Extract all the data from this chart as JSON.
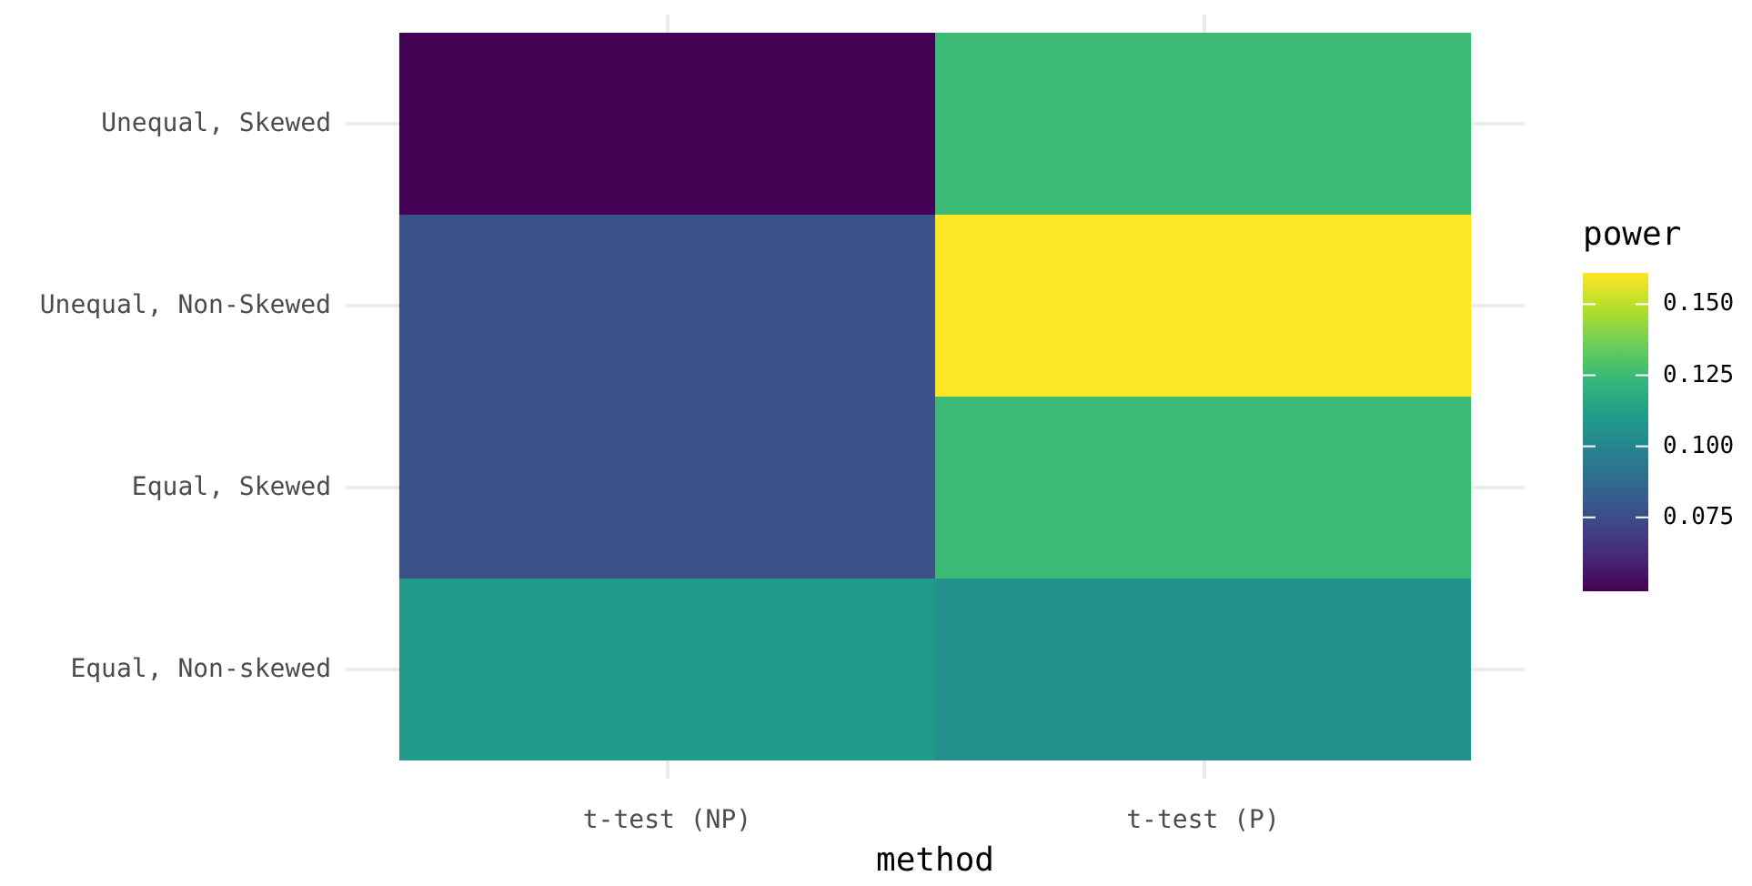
{
  "chart_data": {
    "type": "heatmap",
    "xlabel": "method",
    "clabel": "power",
    "categories": [
      "t-test (NP)",
      "t-test (P)"
    ],
    "y_categories": [
      "Unequal, Skewed",
      "Unequal, Non-Skewed",
      "Equal, Skewed",
      "Equal, Non-skewed"
    ],
    "cells": [
      [
        0.049,
        0.125
      ],
      [
        0.077,
        0.161
      ],
      [
        0.077,
        0.125
      ],
      [
        0.11,
        0.105
      ]
    ],
    "clim": [
      0.049,
      0.161
    ],
    "cticks": [
      {
        "value": 0.075,
        "label": "0.075"
      },
      {
        "value": 0.1,
        "label": "0.100"
      },
      {
        "value": 0.125,
        "label": "0.125"
      },
      {
        "value": 0.15,
        "label": "0.150"
      }
    ],
    "grid": true
  }
}
